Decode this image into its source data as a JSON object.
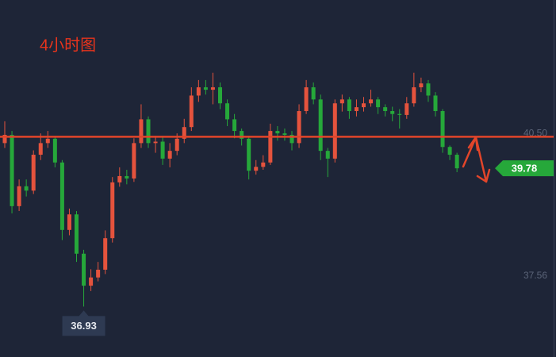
{
  "chart_data": {
    "type": "candlestick",
    "title": "4小时图",
    "up_color": "#e5533d",
    "down_color": "#26a83a",
    "open": [
      40.3,
      40.47,
      39.0,
      39.41,
      39.32,
      40.06,
      40.3,
      40.39,
      39.9,
      38.51,
      38.83,
      38.02,
      37.36,
      37.53,
      37.69,
      38.34,
      39.49,
      39.62,
      39.57,
      40.3,
      40.79,
      40.3,
      40.33,
      39.98,
      40.14,
      40.39,
      40.63,
      41.28,
      41.45,
      41.4,
      41.45,
      41.12,
      40.79,
      40.55,
      40.39,
      39.73,
      39.81,
      39.9,
      40.55,
      40.5,
      40.47,
      40.3,
      40.96,
      41.45,
      41.2,
      40.14,
      39.98,
      41.12,
      41.2,
      40.96,
      41.04,
      41.12,
      41.2,
      41.04,
      40.96,
      40.9,
      40.88,
      41.12,
      41.45,
      41.53,
      41.28,
      40.96,
      40.22,
      40.06
    ],
    "high": [
      40.75,
      40.55,
      39.55,
      39.55,
      40.15,
      40.5,
      40.55,
      40.45,
      39.95,
      38.95,
      38.9,
      38.1,
      37.7,
      37.85,
      38.5,
      39.6,
      39.8,
      39.75,
      40.4,
      41.1,
      40.85,
      40.45,
      40.45,
      40.3,
      40.5,
      40.8,
      41.45,
      41.6,
      41.6,
      41.75,
      41.55,
      41.2,
      40.9,
      40.6,
      40.45,
      39.95,
      40.05,
      40.7,
      40.65,
      40.6,
      40.55,
      41.1,
      41.6,
      41.55,
      41.3,
      40.2,
      41.2,
      41.3,
      41.25,
      41.2,
      41.25,
      41.4,
      41.25,
      41.1,
      41.05,
      41.0,
      41.25,
      41.75,
      41.65,
      41.6,
      41.35,
      41.0,
      40.25,
      40.1
    ],
    "low": [
      40.2,
      38.85,
      38.9,
      39.2,
      39.25,
      39.95,
      40.2,
      39.8,
      38.3,
      38.4,
      37.85,
      36.93,
      37.25,
      37.45,
      37.6,
      38.25,
      39.4,
      39.45,
      39.5,
      40.2,
      40.2,
      40.1,
      39.85,
      39.8,
      40.05,
      40.3,
      40.55,
      41.15,
      41.3,
      41.1,
      41.0,
      40.65,
      40.4,
      40.25,
      39.55,
      39.65,
      39.75,
      39.85,
      40.35,
      40.35,
      40.15,
      40.2,
      40.9,
      41.1,
      39.95,
      39.6,
      39.9,
      40.95,
      40.8,
      40.85,
      40.95,
      41.05,
      40.9,
      40.85,
      40.75,
      40.6,
      40.8,
      41.05,
      41.35,
      41.15,
      40.85,
      40.1,
      39.95,
      39.7
    ],
    "close": [
      40.47,
      39.0,
      39.41,
      39.32,
      40.06,
      40.3,
      40.39,
      39.9,
      38.51,
      38.83,
      38.02,
      37.36,
      37.53,
      37.69,
      38.34,
      39.49,
      39.62,
      39.57,
      40.3,
      40.79,
      40.3,
      40.33,
      39.98,
      40.14,
      40.39,
      40.63,
      41.28,
      41.45,
      41.4,
      41.45,
      41.12,
      40.79,
      40.55,
      40.39,
      39.73,
      39.81,
      39.9,
      40.55,
      40.5,
      40.47,
      40.3,
      40.96,
      41.45,
      41.2,
      40.14,
      39.98,
      41.12,
      41.2,
      40.96,
      41.04,
      41.12,
      41.2,
      41.04,
      40.96,
      40.9,
      40.88,
      41.12,
      41.45,
      41.53,
      41.28,
      40.96,
      40.22,
      40.06,
      39.78
    ],
    "ylim": [
      35.89,
      43.25
    ],
    "yticks": [
      {
        "value": 40.5,
        "label": "40.50"
      },
      37.56
    ],
    "hline": {
      "value": 40.43,
      "color": "#e2452a"
    },
    "last_price": 39.78,
    "low_label": 36.93
  }
}
